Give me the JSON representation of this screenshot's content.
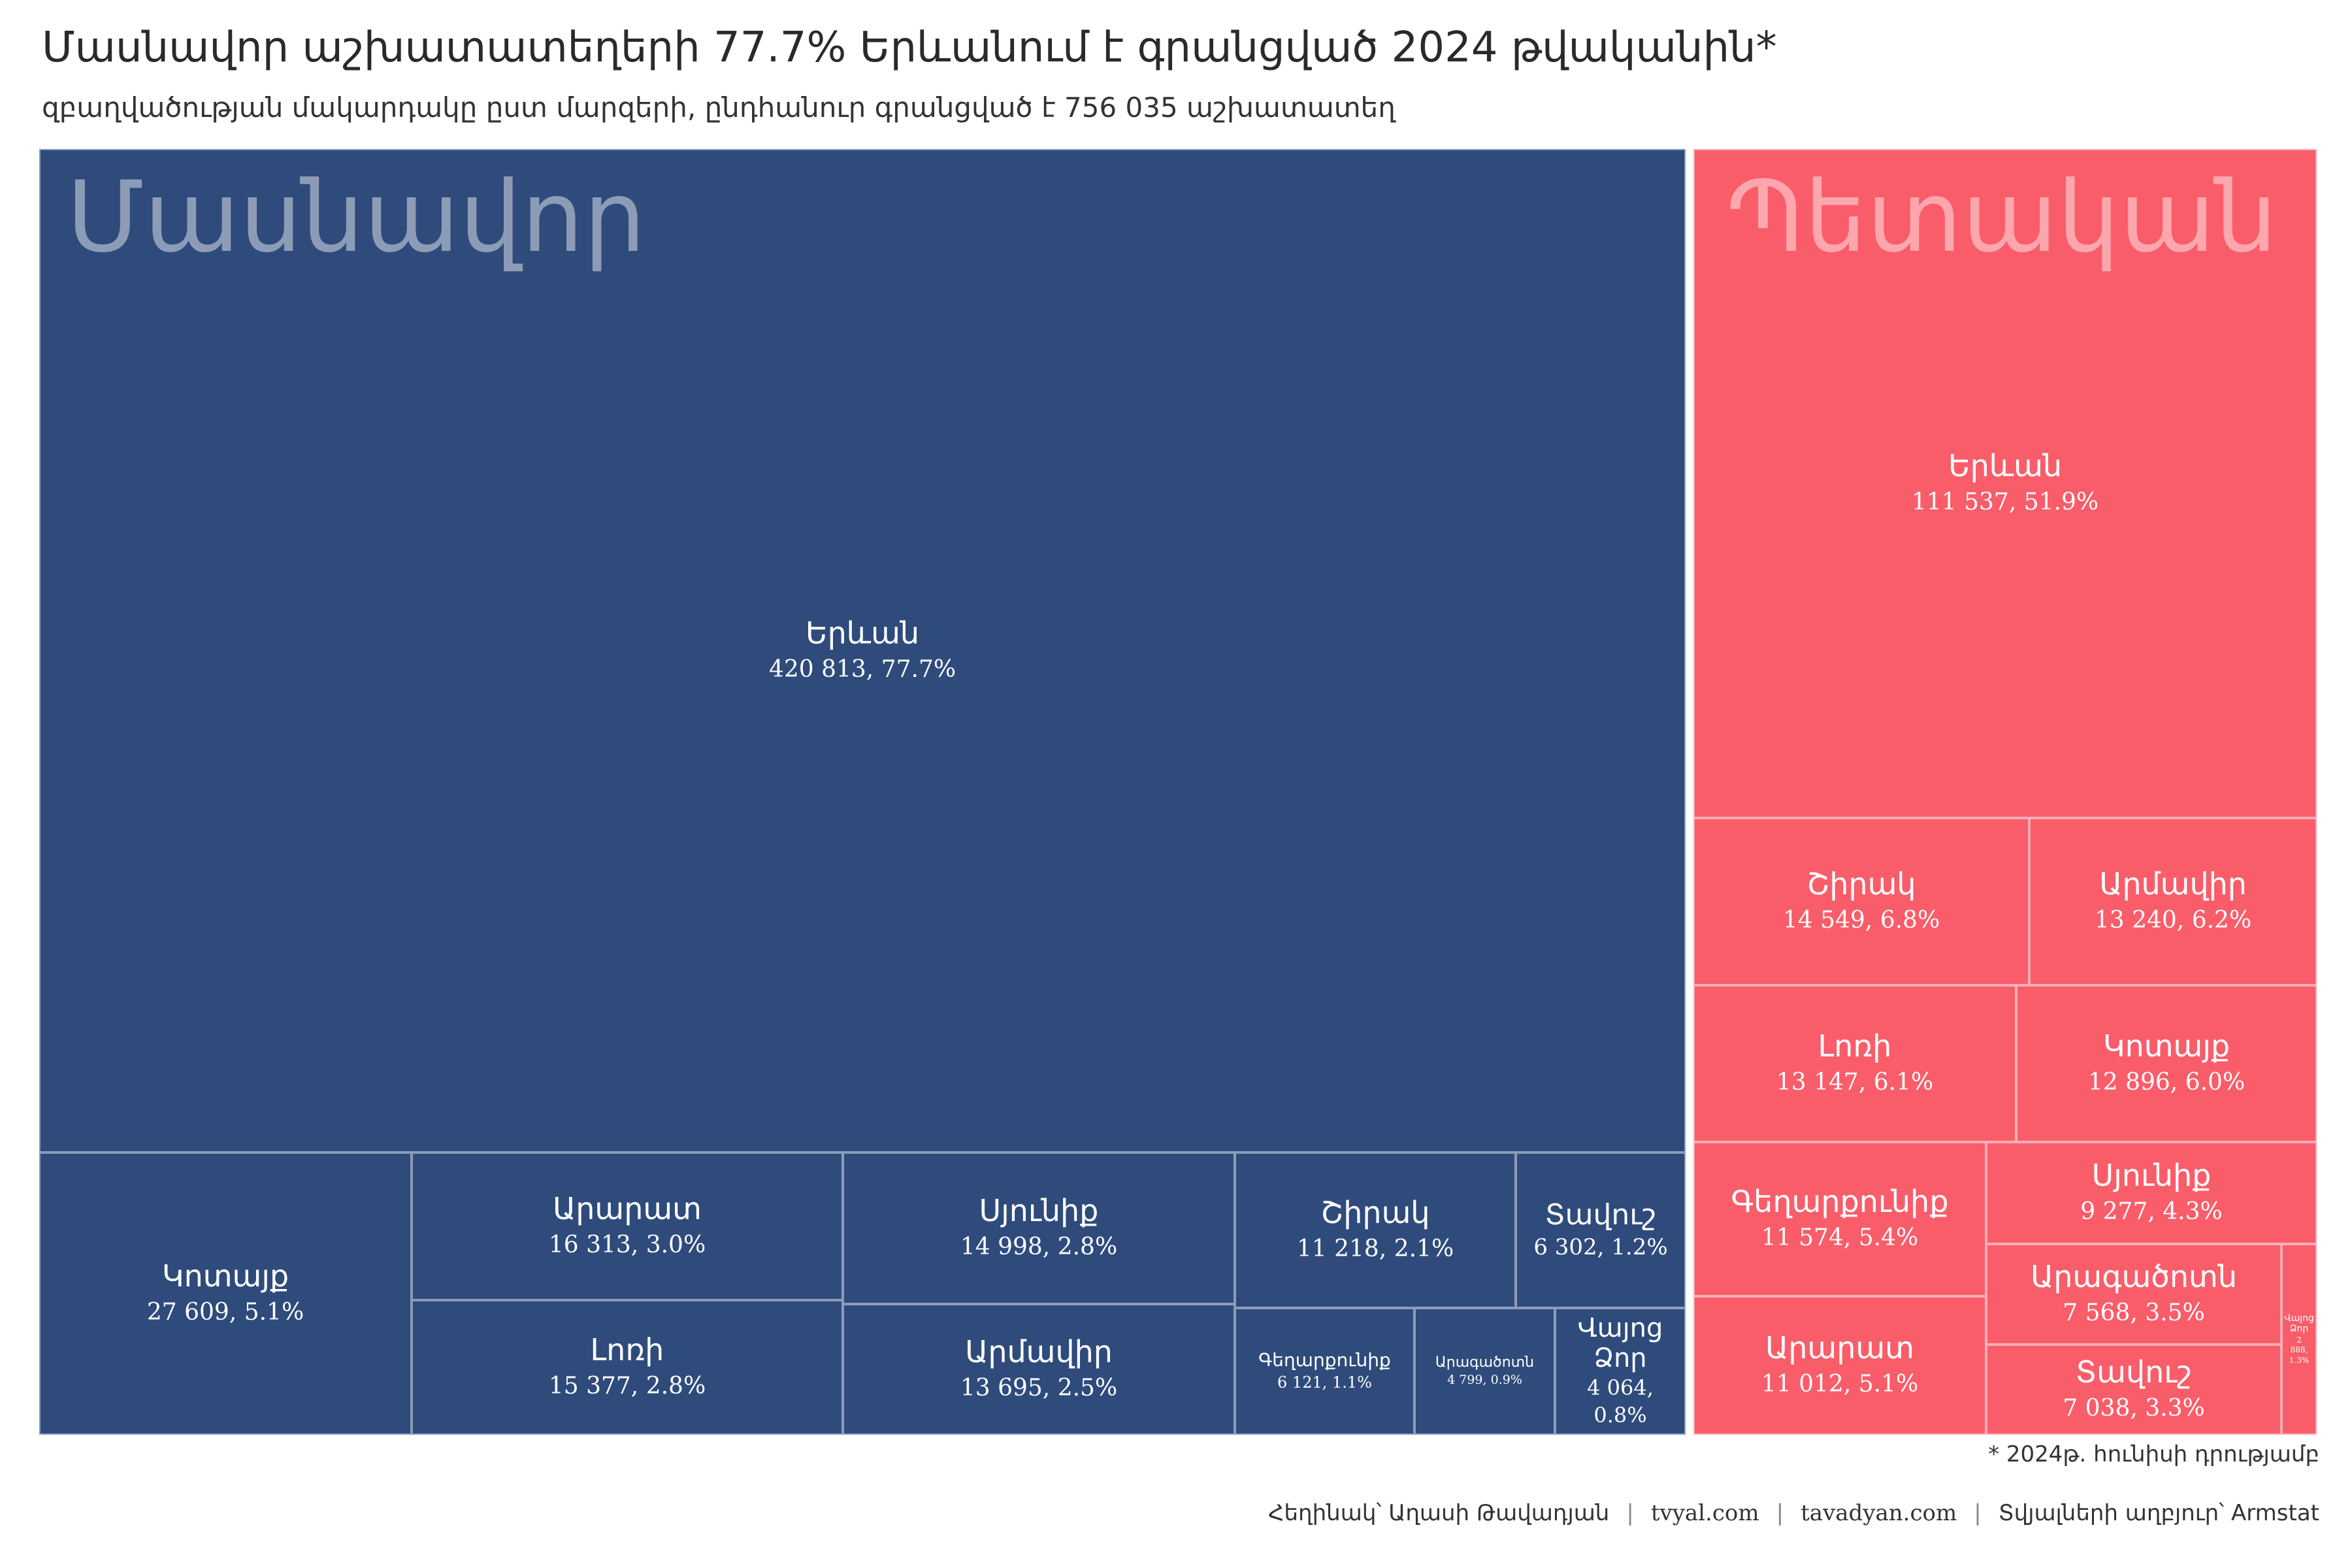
{
  "title": "Մասնավոր աշխատատեղերի 77.7% Երևանում է գրանցված 2024 թվականին*",
  "subtitle": "զբաղվածության մակարդակը ըստ մարզերի, ընդհանուր գրանցված է 756 035 աշխատատեղ",
  "footnote": "* 2024թ. հունիսի դրությամբ",
  "credits": {
    "author": "Հեղինակ՝ Աղասի Թավադյան",
    "site1": "tvyal.com",
    "site2": "tavadyan.com",
    "source": "Տվյալների աղբյուր՝ Armstat"
  },
  "colors": {
    "private": "#2f4b7c",
    "public": "#f95d6a"
  },
  "chart_data": {
    "type": "treemap",
    "title": "Մասնավոր աշխատատեղերի 77.7% Երևանում է գրանցված 2024 թվականին*",
    "subtitle": "զբաղվածության մակարդակը ըստ մարզերի, ընդհանուր գրանցված է 756 035 աշխատատեղ",
    "groups": [
      {
        "name": "Մասնավոր",
        "items": [
          {
            "name": "Երևան",
            "value": 420813,
            "label": "420 813, 77.7%"
          },
          {
            "name": "Կոտայք",
            "value": 27609,
            "label": "27 609, 5.1%"
          },
          {
            "name": "Արարատ",
            "value": 16313,
            "label": "16 313, 3.0%"
          },
          {
            "name": "Լոռի",
            "value": 15377,
            "label": "15 377, 2.8%"
          },
          {
            "name": "Սյունիք",
            "value": 14998,
            "label": "14 998, 2.8%"
          },
          {
            "name": "Արմավիր",
            "value": 13695,
            "label": "13 695, 2.5%"
          },
          {
            "name": "Շիրակ",
            "value": 11218,
            "label": "11 218, 2.1%"
          },
          {
            "name": "Տավուշ",
            "value": 6302,
            "label": "6 302, 1.2%"
          },
          {
            "name": "Գեղարքունիք",
            "value": 6121,
            "label": "6 121, 1.1%"
          },
          {
            "name": "Արագածոտն",
            "value": 4799,
            "label": "4 799, 0.9%"
          },
          {
            "name": "Վայոց Ձոր",
            "value": 4064,
            "label": "4 064, 0.8%"
          }
        ]
      },
      {
        "name": "Պետական",
        "items": [
          {
            "name": "Երևան",
            "value": 111537,
            "label": "111 537, 51.9%"
          },
          {
            "name": "Շիրակ",
            "value": 14549,
            "label": "14 549, 6.8%"
          },
          {
            "name": "Արմավիր",
            "value": 13240,
            "label": "13 240, 6.2%"
          },
          {
            "name": "Լոռի",
            "value": 13147,
            "label": "13 147, 6.1%"
          },
          {
            "name": "Կոտայք",
            "value": 12896,
            "label": "12 896, 6.0%"
          },
          {
            "name": "Գեղարքունիք",
            "value": 11574,
            "label": "11 574, 5.4%"
          },
          {
            "name": "Արարատ",
            "value": 11012,
            "label": "11 012, 5.1%"
          },
          {
            "name": "Սյունիք",
            "value": 9277,
            "label": "9 277, 4.3%"
          },
          {
            "name": "Արագածոտն",
            "value": 7568,
            "label": "7 568, 3.5%"
          },
          {
            "name": "Տավուշ",
            "value": 7038,
            "label": "7 038, 3.3%"
          },
          {
            "name": "Վայոց Ձոր",
            "value": 2888,
            "label": "2 888, 1.3%"
          }
        ]
      }
    ]
  }
}
